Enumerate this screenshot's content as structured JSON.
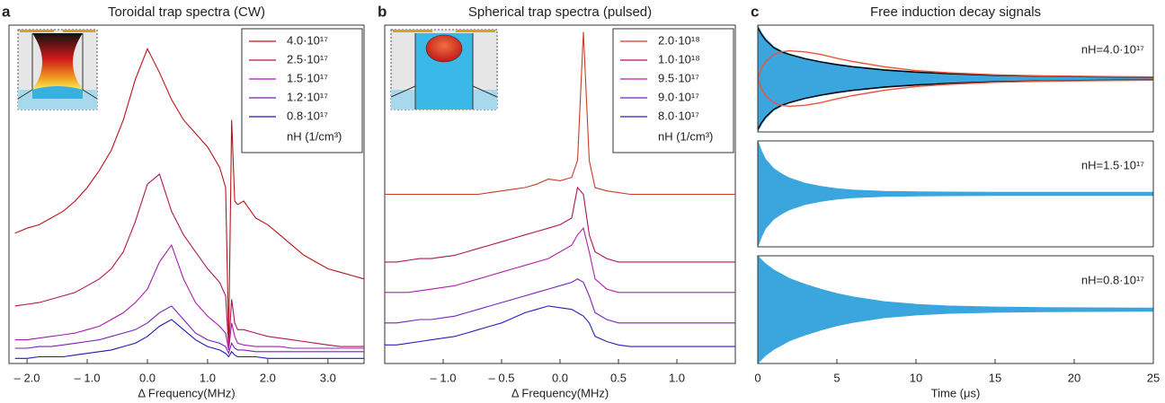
{
  "chart_data": [
    {
      "type": "line",
      "label": "a",
      "title": "Toroidal trap spectra (CW)",
      "xlabel": "Δ Frequency(MHz)",
      "xlim": [
        -2.3,
        3.6
      ],
      "ylim": [
        0,
        1
      ],
      "legend": "upper right",
      "legend_title": "nH (1/cm³)",
      "xticks": [
        {
          "value": -2,
          "label": "– 2.0"
        },
        {
          "value": -1,
          "label": "– 1.0"
        },
        {
          "value": 0,
          "label": "0.0"
        },
        {
          "value": 1,
          "label": "1.0"
        },
        {
          "value": 2,
          "label": "2.0"
        },
        {
          "value": 3,
          "label": "3.0"
        }
      ],
      "x": [
        -2.2,
        -2.0,
        -1.8,
        -1.6,
        -1.4,
        -1.2,
        -1.0,
        -0.8,
        -0.6,
        -0.4,
        -0.2,
        0.0,
        0.2,
        0.4,
        0.6,
        0.8,
        1.0,
        1.2,
        1.3,
        1.35,
        1.4,
        1.45,
        1.5,
        1.6,
        1.8,
        2.0,
        2.2,
        2.4,
        2.6,
        2.8,
        3.0,
        3.2,
        3.4,
        3.6
      ],
      "series": [
        {
          "name": "4.0·10¹⁷",
          "color": "#b8141c",
          "values": [
            0.385,
            0.4,
            0.41,
            0.43,
            0.45,
            0.48,
            0.52,
            0.57,
            0.63,
            0.72,
            0.84,
            0.93,
            0.86,
            0.78,
            0.72,
            0.68,
            0.64,
            0.58,
            0.52,
            0.07,
            0.72,
            0.48,
            0.47,
            0.48,
            0.43,
            0.41,
            0.38,
            0.35,
            0.32,
            0.3,
            0.28,
            0.27,
            0.26,
            0.25
          ]
        },
        {
          "name": "2.5·10¹⁷",
          "color": "#b3135a",
          "values": [
            0.17,
            0.175,
            0.18,
            0.19,
            0.2,
            0.21,
            0.23,
            0.25,
            0.28,
            0.33,
            0.42,
            0.53,
            0.56,
            0.45,
            0.38,
            0.33,
            0.28,
            0.24,
            0.2,
            0.05,
            0.19,
            0.12,
            0.1,
            0.1,
            0.09,
            0.08,
            0.075,
            0.07,
            0.065,
            0.06,
            0.055,
            0.05,
            0.05,
            0.05
          ]
        },
        {
          "name": "1.5·10¹⁷",
          "color": "#a51caf",
          "values": [
            0.07,
            0.07,
            0.075,
            0.08,
            0.085,
            0.09,
            0.1,
            0.11,
            0.13,
            0.15,
            0.18,
            0.22,
            0.3,
            0.35,
            0.25,
            0.18,
            0.14,
            0.11,
            0.09,
            0.04,
            0.12,
            0.08,
            0.06,
            0.055,
            0.05,
            0.05,
            0.05,
            0.045,
            0.045,
            0.045,
            0.045,
            0.045,
            0.045,
            0.045
          ]
        },
        {
          "name": "1.2·10¹⁷",
          "color": "#7a1fb8",
          "values": [
            0.045,
            0.045,
            0.05,
            0.05,
            0.055,
            0.06,
            0.065,
            0.07,
            0.08,
            0.09,
            0.1,
            0.12,
            0.15,
            0.17,
            0.13,
            0.09,
            0.07,
            0.06,
            0.05,
            0.03,
            0.06,
            0.045,
            0.04,
            0.04,
            0.035,
            0.035,
            0.035,
            0.035,
            0.035,
            0.035,
            0.035,
            0.035,
            0.035,
            0.035
          ]
        },
        {
          "name": "0.8·10¹⁷",
          "color": "#2018b0",
          "values": [
            0.015,
            0.015,
            0.02,
            0.02,
            0.02,
            0.025,
            0.03,
            0.035,
            0.04,
            0.05,
            0.06,
            0.08,
            0.11,
            0.13,
            0.1,
            0.07,
            0.05,
            0.04,
            0.03,
            0.02,
            0.035,
            0.025,
            0.02,
            0.02,
            0.02,
            0.015,
            0.015,
            0.015,
            0.015,
            0.015,
            0.015,
            0.015,
            0.015,
            0.015
          ]
        }
      ]
    },
    {
      "type": "line",
      "label": "b",
      "title": "Spherical trap spectra (pulsed)",
      "xlabel": "Δ Frequency(MHz)",
      "xlim": [
        -1.5,
        1.5
      ],
      "ylim": [
        0,
        1
      ],
      "legend": "upper right",
      "legend_title": "nH (1/cm³)",
      "xticks": [
        {
          "value": -1,
          "label": "– 1.0"
        },
        {
          "value": -0.5,
          "label": "– 0.5"
        },
        {
          "value": 0,
          "label": "0.0"
        },
        {
          "value": 0.5,
          "label": "0.5"
        },
        {
          "value": 1,
          "label": "1.0"
        }
      ],
      "x": [
        -1.5,
        -1.4,
        -1.3,
        -1.2,
        -1.1,
        -1.0,
        -0.9,
        -0.8,
        -0.7,
        -0.6,
        -0.5,
        -0.4,
        -0.3,
        -0.2,
        -0.1,
        0.0,
        0.1,
        0.15,
        0.2,
        0.25,
        0.3,
        0.4,
        0.5,
        0.6,
        0.7,
        0.8,
        0.9,
        1.0,
        1.1,
        1.2,
        1.3,
        1.4,
        1.5
      ],
      "series": [
        {
          "name": "2.0·10¹⁸",
          "color": "#cc3a2a",
          "values": [
            0.5,
            0.5,
            0.5,
            0.5,
            0.5,
            0.5,
            0.5,
            0.5,
            0.5,
            0.505,
            0.51,
            0.515,
            0.52,
            0.53,
            0.545,
            0.54,
            0.55,
            0.6,
            0.98,
            0.6,
            0.52,
            0.51,
            0.505,
            0.5,
            0.5,
            0.5,
            0.5,
            0.5,
            0.5,
            0.5,
            0.5,
            0.5,
            0.5
          ]
        },
        {
          "name": "1.0·10¹⁸",
          "color": "#b0135a",
          "values": [
            0.3,
            0.3,
            0.305,
            0.31,
            0.31,
            0.315,
            0.32,
            0.33,
            0.34,
            0.35,
            0.36,
            0.37,
            0.38,
            0.39,
            0.4,
            0.41,
            0.43,
            0.52,
            0.5,
            0.38,
            0.33,
            0.31,
            0.3,
            0.3,
            0.3,
            0.3,
            0.3,
            0.3,
            0.3,
            0.3,
            0.3,
            0.3,
            0.3
          ]
        },
        {
          "name": "9.5·10¹⁷",
          "color": "#b020a8",
          "values": [
            0.21,
            0.21,
            0.21,
            0.215,
            0.22,
            0.225,
            0.23,
            0.24,
            0.25,
            0.26,
            0.27,
            0.28,
            0.29,
            0.3,
            0.31,
            0.33,
            0.35,
            0.38,
            0.4,
            0.33,
            0.25,
            0.22,
            0.21,
            0.21,
            0.21,
            0.21,
            0.21,
            0.21,
            0.21,
            0.21,
            0.21,
            0.21,
            0.21
          ]
        },
        {
          "name": "9.0·10¹⁷",
          "color": "#7a22c0",
          "values": [
            0.12,
            0.12,
            0.125,
            0.13,
            0.13,
            0.135,
            0.14,
            0.15,
            0.16,
            0.17,
            0.18,
            0.19,
            0.2,
            0.21,
            0.22,
            0.23,
            0.24,
            0.25,
            0.24,
            0.2,
            0.15,
            0.13,
            0.12,
            0.12,
            0.12,
            0.12,
            0.12,
            0.12,
            0.12,
            0.12,
            0.12,
            0.12,
            0.12
          ]
        },
        {
          "name": "8.0·10¹⁷",
          "color": "#2a1cc0",
          "values": [
            0.055,
            0.055,
            0.06,
            0.065,
            0.07,
            0.075,
            0.08,
            0.09,
            0.1,
            0.11,
            0.12,
            0.135,
            0.15,
            0.16,
            0.17,
            0.165,
            0.16,
            0.15,
            0.14,
            0.12,
            0.08,
            0.065,
            0.055,
            0.05,
            0.05,
            0.05,
            0.05,
            0.05,
            0.05,
            0.05,
            0.05,
            0.05,
            0.05
          ]
        }
      ]
    },
    {
      "type": "envelope",
      "label": "c",
      "title": "Free induction decay signals",
      "xlabel": "Time (μs)",
      "xlim": [
        0,
        25
      ],
      "xticks": [
        0,
        5,
        10,
        15,
        20,
        25
      ],
      "ylim": [
        -1,
        1
      ],
      "x": [
        0,
        0.25,
        0.5,
        1,
        1.5,
        2,
        3,
        4,
        5,
        6,
        8,
        10,
        12,
        15,
        18,
        21,
        25
      ],
      "panels": [
        {
          "annotation": "nH=4.0·10¹⁷",
          "series": [
            {
              "color": "#3aa6dd",
              "style": "fill",
              "values": [
                1,
                0.85,
                0.75,
                0.6,
                0.52,
                0.46,
                0.38,
                0.32,
                0.27,
                0.23,
                0.17,
                0.13,
                0.1,
                0.07,
                0.05,
                0.04,
                0.03
              ]
            },
            {
              "color": "#000000",
              "style": "line",
              "values": [
                0.95,
                0.82,
                0.72,
                0.58,
                0.5,
                0.45,
                0.37,
                0.31,
                0.26,
                0.22,
                0.16,
                0.12,
                0.09,
                0.06,
                0.045,
                0.035,
                0.025
              ]
            },
            {
              "color": "#e8553a",
              "style": "line",
              "values": [
                0,
                0.2,
                0.32,
                0.45,
                0.5,
                0.52,
                0.5,
                0.45,
                0.38,
                0.32,
                0.22,
                0.15,
                0.11,
                0.07,
                0.05,
                0.04,
                0.03
              ]
            }
          ]
        },
        {
          "annotation": "nH=1.5·10¹⁷",
          "series": [
            {
              "color": "#3aa6dd",
              "style": "fill",
              "values": [
                1,
                0.8,
                0.65,
                0.48,
                0.38,
                0.3,
                0.2,
                0.14,
                0.1,
                0.075,
                0.05,
                0.04,
                0.035,
                0.03,
                0.03,
                0.03,
                0.03
              ]
            }
          ]
        },
        {
          "annotation": "nH=0.8·10¹⁷",
          "series": [
            {
              "color": "#3aa6dd",
              "style": "fill",
              "values": [
                1,
                0.92,
                0.85,
                0.74,
                0.66,
                0.58,
                0.47,
                0.38,
                0.3,
                0.24,
                0.15,
                0.1,
                0.07,
                0.05,
                0.04,
                0.035,
                0.03
              ]
            }
          ]
        }
      ]
    }
  ]
}
